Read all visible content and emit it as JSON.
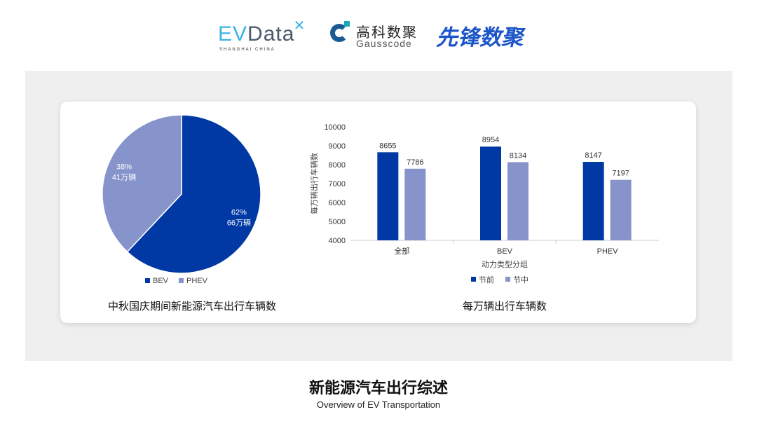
{
  "logos": {
    "evdata": "EVData",
    "evdata_sub": "SHANGHAI CHINA",
    "gauss_cn": "高科数聚",
    "gauss_en": "Gausscode",
    "xianfeng": "先锋数聚"
  },
  "colors": {
    "dark": "#0038a4",
    "light": "#8794cc"
  },
  "chart_data": [
    {
      "type": "pie",
      "title": "中秋国庆期间新能源汽车出行车辆数",
      "slices": [
        {
          "name": "BEV",
          "percent": 62,
          "label": "66万辆"
        },
        {
          "name": "PHEV",
          "percent": 38,
          "label": "41万辆"
        }
      ],
      "legend": [
        "BEV",
        "PHEV"
      ],
      "legend_position": "bottom"
    },
    {
      "type": "bar",
      "title": "每万辆出行车辆数",
      "xlabel": "动力类型分组",
      "ylabel": "每万辆出行车辆数",
      "categories": [
        "全部",
        "BEV",
        "PHEV"
      ],
      "ylim": [
        4000,
        10000
      ],
      "yticks": [
        4000,
        5000,
        6000,
        7000,
        8000,
        9000,
        10000
      ],
      "series": [
        {
          "name": "节前",
          "values": [
            8655,
            8954,
            8147
          ]
        },
        {
          "name": "节中",
          "values": [
            7786,
            8134,
            7197
          ]
        }
      ],
      "legend_position": "bottom"
    }
  ],
  "footer": {
    "title": "新能源汽车出行综述",
    "subtitle": "Overview of EV Transportation"
  }
}
